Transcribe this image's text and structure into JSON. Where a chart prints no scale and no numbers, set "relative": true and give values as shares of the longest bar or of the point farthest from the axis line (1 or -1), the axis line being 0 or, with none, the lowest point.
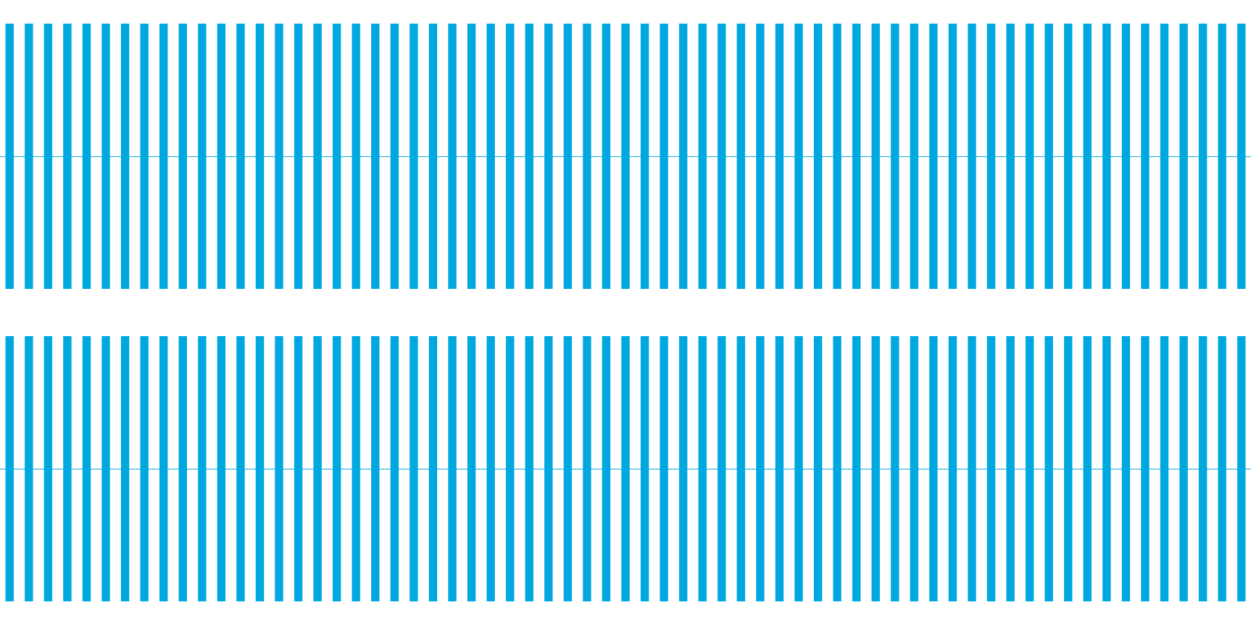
{
  "chart_data": [
    {
      "type": "bar",
      "relative": true,
      "categories": [
        null,
        null,
        null,
        null,
        null,
        null,
        null,
        null,
        null,
        null,
        null,
        null,
        null,
        null,
        null,
        null,
        null,
        null,
        null,
        null,
        null,
        null,
        null,
        null,
        null,
        null,
        null,
        null,
        null,
        null,
        null,
        null,
        null,
        null,
        null,
        null,
        null,
        null,
        null,
        null,
        null,
        null,
        null,
        null,
        null,
        null,
        null,
        null,
        null,
        null,
        null,
        null,
        null,
        null,
        null,
        null,
        null,
        null,
        null,
        null,
        null,
        null,
        null,
        null,
        null
      ],
      "color": "#00a8e0",
      "values": [
        1,
        1,
        1,
        1,
        1,
        1,
        1,
        1,
        1,
        1,
        1,
        1,
        1,
        1,
        1,
        1,
        1,
        1,
        1,
        1,
        1,
        1,
        1,
        1,
        1,
        1,
        1,
        1,
        1,
        1,
        1,
        1,
        1,
        1,
        1,
        1,
        1,
        1,
        1,
        1,
        1,
        1,
        1,
        1,
        1,
        1,
        1,
        1,
        1,
        1,
        1,
        1,
        1,
        1,
        1,
        1,
        1,
        1,
        1,
        1,
        1,
        1,
        1,
        1,
        1
      ],
      "ref_lines": [
        {
          "axis": "y",
          "value": 0.5
        }
      ]
    },
    {
      "type": "bar",
      "relative": true,
      "categories": [
        null,
        null,
        null,
        null,
        null,
        null,
        null,
        null,
        null,
        null,
        null,
        null,
        null,
        null,
        null,
        null,
        null,
        null,
        null,
        null,
        null,
        null,
        null,
        null,
        null,
        null,
        null,
        null,
        null,
        null,
        null,
        null,
        null,
        null,
        null,
        null,
        null,
        null,
        null,
        null,
        null,
        null,
        null,
        null,
        null,
        null,
        null,
        null,
        null,
        null,
        null,
        null,
        null,
        null,
        null,
        null,
        null,
        null,
        null,
        null,
        null,
        null,
        null,
        null,
        null
      ],
      "color": "#00a8e0",
      "values": [
        1,
        1,
        1,
        1,
        1,
        1,
        1,
        1,
        1,
        1,
        1,
        1,
        1,
        1,
        1,
        1,
        1,
        1,
        1,
        1,
        1,
        1,
        1,
        1,
        1,
        1,
        1,
        1,
        1,
        1,
        1,
        1,
        1,
        1,
        1,
        1,
        1,
        1,
        1,
        1,
        1,
        1,
        1,
        1,
        1,
        1,
        1,
        1,
        1,
        1,
        1,
        1,
        1,
        1,
        1,
        1,
        1,
        1,
        1,
        1,
        1,
        1,
        1,
        1,
        1
      ],
      "ref_lines": [
        {
          "axis": "y",
          "value": 0.5
        }
      ]
    }
  ]
}
